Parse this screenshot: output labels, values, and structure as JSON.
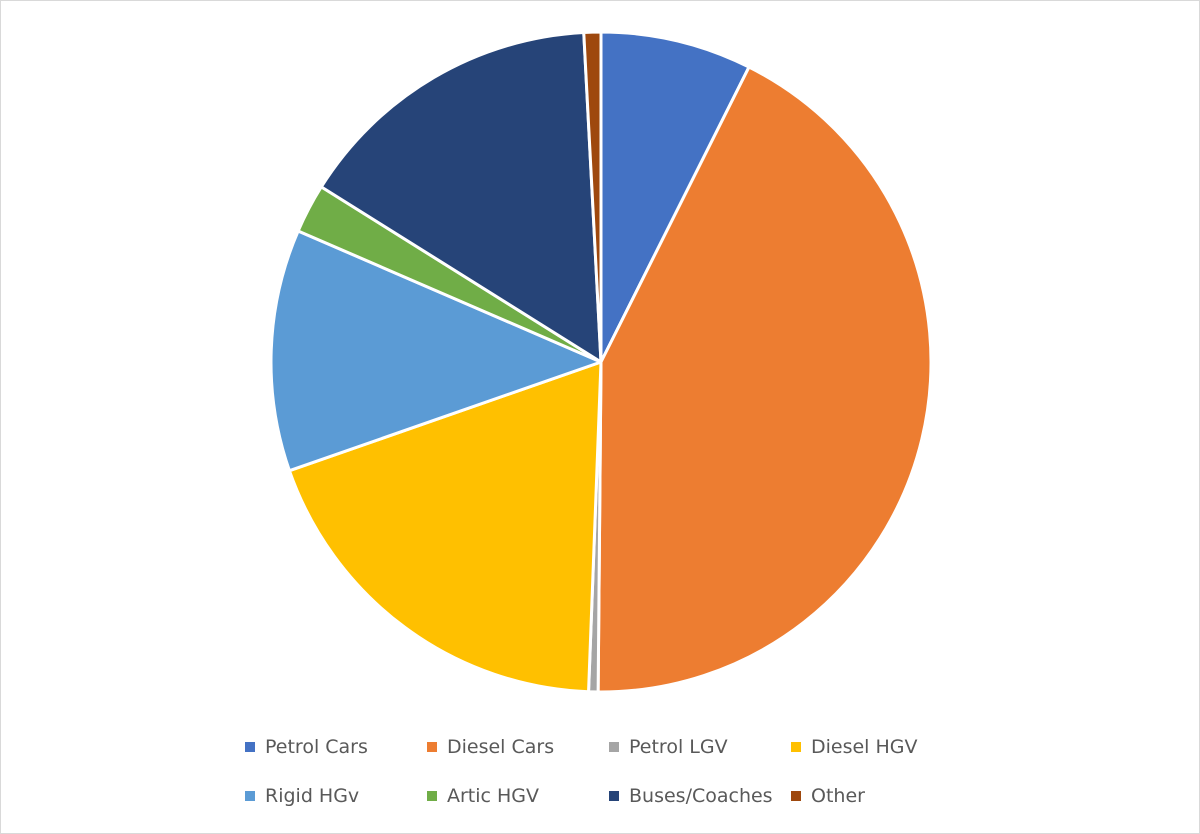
{
  "chart_data": {
    "type": "pie",
    "title": "",
    "categories": [
      "Petrol Cars",
      "Diesel Cars",
      "Petrol LGV",
      "Diesel HGV",
      "Rigid HGv",
      "Artic HGV",
      "Buses/Coaches",
      "Other"
    ],
    "values": [
      8.0,
      46.2,
      0.5,
      20.6,
      12.8,
      2.6,
      16.5,
      0.9
    ],
    "units": "%",
    "colors": [
      "#4472C4",
      "#ED7D31",
      "#A5A5A5",
      "#FFC000",
      "#5B9BD5",
      "#70AD47",
      "#264478",
      "#9E480E"
    ],
    "legend_position": "bottom",
    "start_angle": "top, clockwise"
  }
}
